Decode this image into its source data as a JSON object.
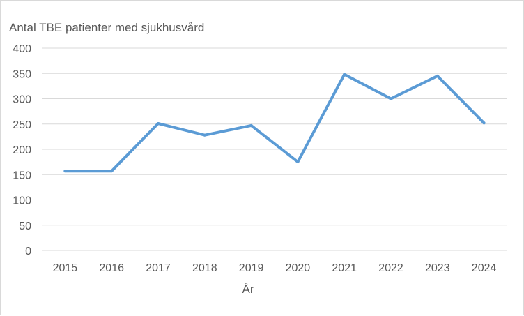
{
  "chart_data": {
    "type": "line",
    "title": "",
    "ylabel": "Antal TBE patienter med sjukhusvård",
    "xlabel": "År",
    "categories": [
      "2015",
      "2016",
      "2017",
      "2018",
      "2019",
      "2020",
      "2021",
      "2022",
      "2023",
      "2024"
    ],
    "series": [
      {
        "values": [
          157,
          157,
          251,
          228,
          247,
          175,
          348,
          300,
          345,
          252
        ]
      }
    ],
    "yticks": [
      "0",
      "50",
      "100",
      "150",
      "200",
      "250",
      "300",
      "350",
      "400"
    ],
    "ylim": [
      0,
      400
    ],
    "grid": true,
    "legend": "none",
    "line_color": "#5b9bd5",
    "grid_color": "#d9d9d9"
  }
}
